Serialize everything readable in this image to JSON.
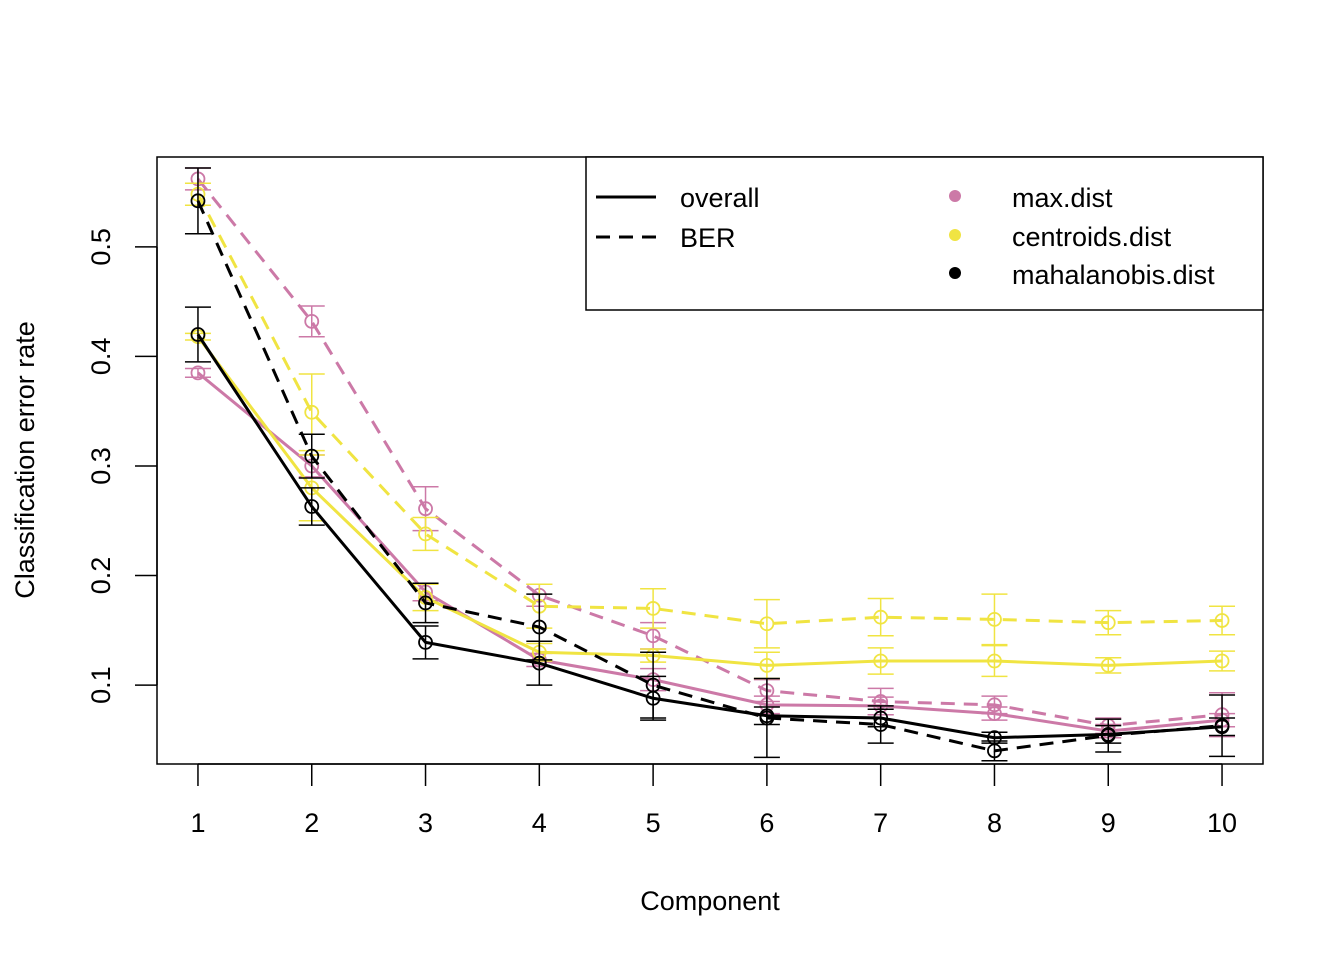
{
  "chart_data": {
    "type": "line",
    "title": "",
    "xlabel": "Component",
    "ylabel": "Classification error rate",
    "x": [
      1,
      2,
      3,
      4,
      5,
      6,
      7,
      8,
      9,
      10
    ],
    "x_tick_labels": [
      "1",
      "2",
      "3",
      "4",
      "5",
      "6",
      "7",
      "8",
      "9",
      "10"
    ],
    "y_ticks": [
      0.1,
      0.2,
      0.3,
      0.4,
      0.5
    ],
    "y_tick_labels": [
      "0.1",
      "0.2",
      "0.3",
      "0.4",
      "0.5"
    ],
    "xlim": [
      0.64,
      10.36
    ],
    "ylim": [
      0.028,
      0.582
    ],
    "grid": false,
    "legend_position": "top-right",
    "legend": {
      "line_types": [
        {
          "label": "overall",
          "dash": "solid"
        },
        {
          "label": "BER",
          "dash": "dashed"
        }
      ],
      "distances": [
        {
          "label": "max.dist",
          "color": "#CC79A7"
        },
        {
          "label": "centroids.dist",
          "color": "#F0E442"
        },
        {
          "label": "mahalanobis.dist",
          "color": "#000000"
        }
      ]
    },
    "series": [
      {
        "measure": "overall",
        "distance": "max.dist",
        "color": "#CC79A7",
        "dash": "solid",
        "values": [
          0.385,
          0.3,
          0.185,
          0.123,
          0.105,
          0.082,
          0.081,
          0.074,
          0.058,
          0.068
        ],
        "err": [
          0.004,
          0.01,
          0.008,
          0.006,
          0.01,
          0.008,
          0.008,
          0.006,
          0.006,
          0.006
        ]
      },
      {
        "measure": "BER",
        "distance": "max.dist",
        "color": "#CC79A7",
        "dash": "dashed",
        "values": [
          0.562,
          0.432,
          0.261,
          0.182,
          0.145,
          0.095,
          0.085,
          0.082,
          0.063,
          0.073
        ],
        "err": [
          0.01,
          0.014,
          0.02,
          0.01,
          0.012,
          0.01,
          0.012,
          0.008,
          0.007,
          0.02
        ]
      },
      {
        "measure": "overall",
        "distance": "centroids.dist",
        "color": "#F0E442",
        "dash": "solid",
        "values": [
          0.418,
          0.28,
          0.18,
          0.13,
          0.127,
          0.118,
          0.122,
          0.122,
          0.118,
          0.122
        ],
        "err": [
          0.003,
          0.03,
          0.012,
          0.008,
          0.006,
          0.012,
          0.012,
          0.014,
          0.007,
          0.009
        ]
      },
      {
        "measure": "BER",
        "distance": "centroids.dist",
        "color": "#F0E442",
        "dash": "dashed",
        "values": [
          0.548,
          0.349,
          0.238,
          0.172,
          0.17,
          0.156,
          0.162,
          0.16,
          0.157,
          0.159
        ],
        "err": [
          0.01,
          0.035,
          0.015,
          0.02,
          0.018,
          0.022,
          0.017,
          0.023,
          0.011,
          0.013
        ]
      },
      {
        "measure": "overall",
        "distance": "mahalanobis.dist",
        "color": "#000000",
        "dash": "solid",
        "values": [
          0.42,
          0.263,
          0.139,
          0.12,
          0.088,
          0.072,
          0.07,
          0.052,
          0.055,
          0.062
        ],
        "err": [
          0.025,
          0.017,
          0.015,
          0.02,
          0.02,
          0.008,
          0.008,
          0.005,
          0.008,
          0.008
        ]
      },
      {
        "measure": "BER",
        "distance": "mahalanobis.dist",
        "color": "#000000",
        "dash": "dashed",
        "values": [
          0.542,
          0.309,
          0.175,
          0.153,
          0.1,
          0.07,
          0.064,
          0.04,
          0.054,
          0.063
        ],
        "err": [
          0.03,
          0.02,
          0.018,
          0.03,
          0.03,
          0.036,
          0.017,
          0.009,
          0.015,
          0.028
        ]
      }
    ]
  }
}
